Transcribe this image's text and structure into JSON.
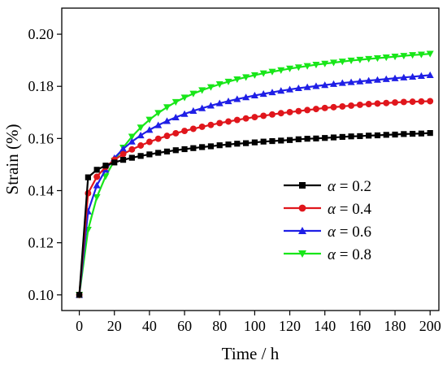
{
  "chart_data": {
    "type": "line",
    "xlabel": "Time / h",
    "ylabel": "Strain (%)",
    "xlim": [
      -10,
      205
    ],
    "ylim": [
      0.094,
      0.21
    ],
    "xticks": [
      0,
      20,
      40,
      60,
      80,
      100,
      120,
      140,
      160,
      180,
      200
    ],
    "yticks": [
      0.1,
      0.12,
      0.14,
      0.16,
      0.18,
      0.2
    ],
    "ytick_labels": [
      "0.10",
      "0.12",
      "0.14",
      "0.16",
      "0.18",
      "0.20"
    ],
    "legend_position": "center-right",
    "x": [
      0,
      5,
      10,
      15,
      20,
      25,
      30,
      35,
      40,
      45,
      50,
      55,
      60,
      65,
      70,
      75,
      80,
      85,
      90,
      95,
      100,
      105,
      110,
      115,
      120,
      125,
      130,
      135,
      140,
      145,
      150,
      155,
      160,
      165,
      170,
      175,
      180,
      185,
      190,
      195,
      200
    ],
    "series": [
      {
        "name": "α = 0.2",
        "alpha_symbol": "α",
        "alpha_value": "= 0.2",
        "color": "#000000",
        "marker": "square",
        "values": [
          0.1,
          0.1451,
          0.148,
          0.1496,
          0.1508,
          0.1518,
          0.1526,
          0.1533,
          0.1539,
          0.1545,
          0.155,
          0.1555,
          0.1559,
          0.1563,
          0.1567,
          0.157,
          0.1574,
          0.1577,
          0.158,
          0.1582,
          0.1585,
          0.1588,
          0.159,
          0.1592,
          0.1594,
          0.1597,
          0.1599,
          0.16,
          0.1602,
          0.1604,
          0.1606,
          0.1608,
          0.1609,
          0.1611,
          0.1612,
          0.1614,
          0.1615,
          0.1617,
          0.1618,
          0.1619,
          0.1621
        ]
      },
      {
        "name": "α = 0.4",
        "alpha_symbol": "α",
        "alpha_value": "= 0.4",
        "color": "#e0161c",
        "marker": "circle",
        "values": [
          0.1,
          0.139,
          0.1453,
          0.1491,
          0.1518,
          0.154,
          0.1558,
          0.1573,
          0.1587,
          0.1599,
          0.161,
          0.162,
          0.1629,
          0.1637,
          0.1645,
          0.1652,
          0.1659,
          0.1665,
          0.1671,
          0.1677,
          0.1682,
          0.1687,
          0.1692,
          0.1697,
          0.1701,
          0.1705,
          0.1709,
          0.1713,
          0.1717,
          0.172,
          0.1723,
          0.1726,
          0.1729,
          0.1732,
          0.1734,
          0.1736,
          0.1738,
          0.174,
          0.1741,
          0.1742,
          0.1743
        ]
      },
      {
        "name": "α = 0.6",
        "alpha_symbol": "α",
        "alpha_value": "= 0.6",
        "color": "#1f1fe6",
        "marker": "triangle-up",
        "values": [
          0.1,
          0.132,
          0.142,
          0.148,
          0.1525,
          0.156,
          0.1588,
          0.1612,
          0.1633,
          0.1651,
          0.1667,
          0.1681,
          0.1694,
          0.1706,
          0.1716,
          0.1726,
          0.1735,
          0.1743,
          0.1751,
          0.1758,
          0.1765,
          0.1771,
          0.1777,
          0.1783,
          0.1788,
          0.1793,
          0.1797,
          0.1801,
          0.1805,
          0.1809,
          0.1813,
          0.1816,
          0.1819,
          0.1822,
          0.1825,
          0.1828,
          0.1831,
          0.1834,
          0.1837,
          0.184,
          0.1843
        ]
      },
      {
        "name": "α = 0.8",
        "alpha_symbol": "α",
        "alpha_value": "= 0.8",
        "color": "#18e619",
        "marker": "triangle-down",
        "values": [
          0.1,
          0.125,
          0.1375,
          0.1455,
          0.1515,
          0.1565,
          0.1607,
          0.1642,
          0.1672,
          0.1698,
          0.172,
          0.174,
          0.1757,
          0.1772,
          0.1785,
          0.1797,
          0.1808,
          0.1818,
          0.1827,
          0.1835,
          0.1843,
          0.185,
          0.1856,
          0.1862,
          0.1868,
          0.1873,
          0.1878,
          0.1883,
          0.1887,
          0.1891,
          0.1895,
          0.1899,
          0.1902,
          0.1905,
          0.1908,
          0.1911,
          0.1914,
          0.1917,
          0.192,
          0.1922,
          0.1925
        ]
      }
    ]
  }
}
